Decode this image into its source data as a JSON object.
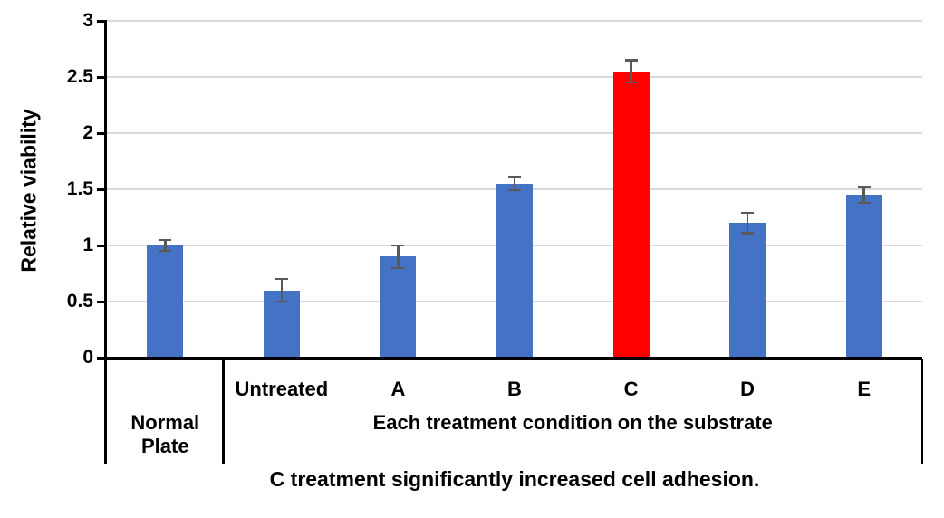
{
  "figure": {
    "caption": "C treatment significantly increased cell adhesion."
  },
  "chart_data": {
    "type": "bar",
    "title": "",
    "xlabel": "",
    "ylabel": "Relative viability",
    "ylim": [
      0,
      3
    ],
    "y_ticks": [
      "0",
      "0.5",
      "1",
      "1.5",
      "2",
      "2.5",
      "3"
    ],
    "grid": true,
    "legend": "none",
    "categories": [
      "Normal Plate",
      "Untreated",
      "A",
      "B",
      "C",
      "D",
      "E"
    ],
    "category_axis_row1_labels": [
      "",
      "Untreated",
      "A",
      "B",
      "C",
      "D",
      "E"
    ],
    "values": [
      1.0,
      0.6,
      0.9,
      1.55,
      2.55,
      1.2,
      1.45
    ],
    "errors": [
      0.05,
      0.1,
      0.1,
      0.06,
      0.1,
      0.09,
      0.07
    ],
    "bar_colors": [
      "#4472C4",
      "#4472C4",
      "#4472C4",
      "#4472C4",
      "#FF0000",
      "#4472C4",
      "#4472C4"
    ],
    "axis_groups": [
      {
        "label": "Normal Plate",
        "start": 0,
        "span": 1
      },
      {
        "label": "Each treatment condition on the substrate",
        "start": 1,
        "span": 6
      }
    ],
    "colors": {
      "default_bar": "#4472C4",
      "highlight_bar": "#FF0000",
      "error_bar": "#595959",
      "gridline": "#D9D9D9",
      "axis": "#000000",
      "text": "#000000",
      "background": "#FFFFFF"
    },
    "caption": "C treatment significantly increased cell adhesion."
  }
}
